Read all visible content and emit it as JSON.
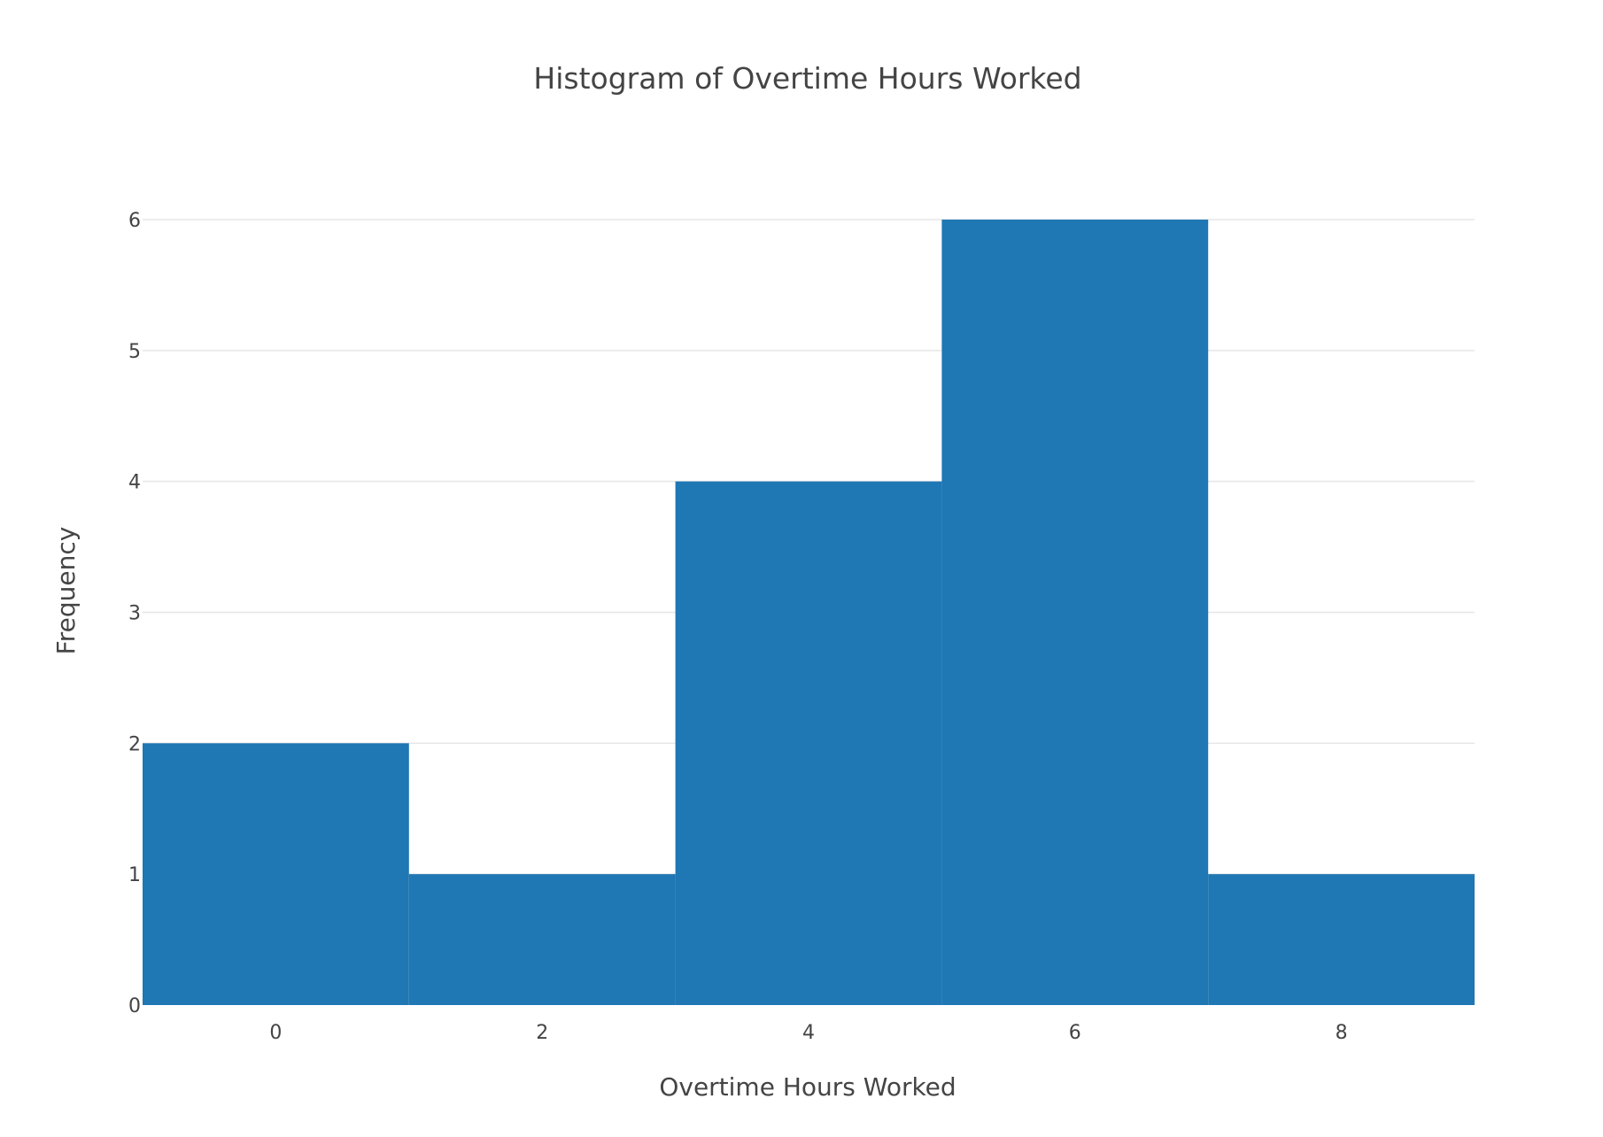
{
  "chart_data": {
    "type": "bar",
    "title": "Histogram of Overtime Hours Worked",
    "xlabel": "Overtime Hours Worked",
    "ylabel": "Frequency",
    "bins": [
      {
        "start": -1,
        "end": 1,
        "count": 2
      },
      {
        "start": 1,
        "end": 3,
        "count": 1
      },
      {
        "start": 3,
        "end": 5,
        "count": 4
      },
      {
        "start": 5,
        "end": 7,
        "count": 6
      },
      {
        "start": 7,
        "end": 9,
        "count": 1
      }
    ],
    "xlim": [
      -1,
      9
    ],
    "ylim": [
      0,
      6
    ],
    "x_ticks": [
      0,
      2,
      4,
      6,
      8
    ],
    "y_ticks": [
      0,
      1,
      2,
      3,
      4,
      5,
      6
    ],
    "bar_color": "#1f77b4",
    "grid": true
  }
}
